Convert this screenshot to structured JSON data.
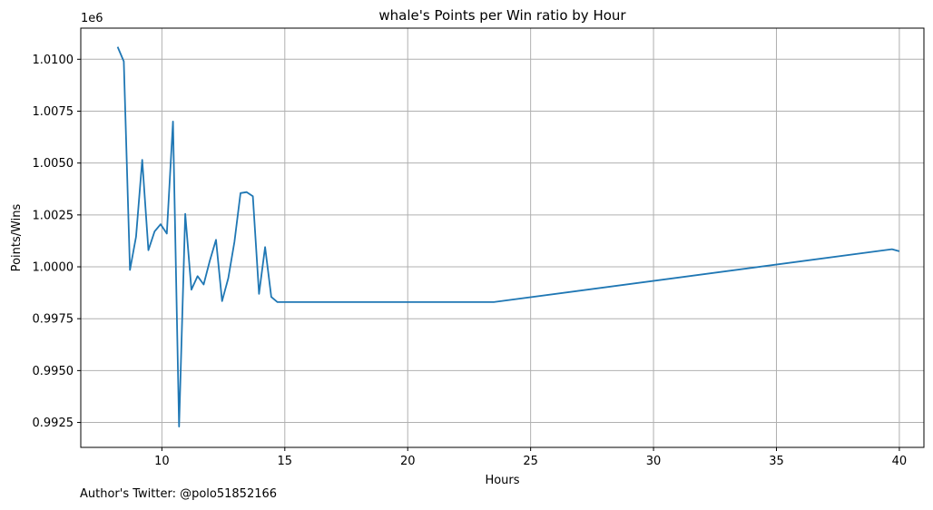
{
  "chart_data": {
    "type": "line",
    "title": "whale's Points per Win ratio by Hour",
    "xlabel": "Hours",
    "ylabel": "Points/Wins",
    "y_offset_label": "1e6",
    "xlim": [
      6.7,
      41.0
    ],
    "ylim": [
      991300,
      1011500
    ],
    "x_ticks": [
      10,
      15,
      20,
      25,
      30,
      35,
      40
    ],
    "y_ticks": [
      992500,
      995000,
      997500,
      1000000,
      1002500,
      1005000,
      1007500,
      1010000
    ],
    "y_tick_labels": [
      "0.9925",
      "0.9950",
      "0.9975",
      "1.0000",
      "1.0025",
      "1.0050",
      "1.0075",
      "1.0100"
    ],
    "grid": true,
    "line_color": "#1f77b4",
    "series": [
      {
        "x": [
          8.2,
          8.45,
          8.7,
          8.95,
          9.2,
          9.45,
          9.7,
          9.95,
          10.2,
          10.45,
          10.7,
          10.95,
          11.2,
          11.45,
          11.7,
          11.95,
          12.2,
          12.45,
          12.7,
          12.95,
          13.2,
          13.45,
          13.7,
          13.95,
          14.2,
          14.45,
          14.7,
          23.5,
          39.7,
          40.0
        ],
        "y": [
          1010600,
          1009900,
          999850,
          1001450,
          1005150,
          1000800,
          1001700,
          1002050,
          1001600,
          1007000,
          992300,
          1002550,
          998900,
          999550,
          999150,
          1000300,
          1001300,
          998350,
          999450,
          1001200,
          1003550,
          1003600,
          1003400,
          998700,
          1000950,
          998550,
          998300,
          998300,
          1000850,
          1000750
        ]
      }
    ]
  },
  "footer": {
    "text": "Author's Twitter: @polo51852166"
  }
}
